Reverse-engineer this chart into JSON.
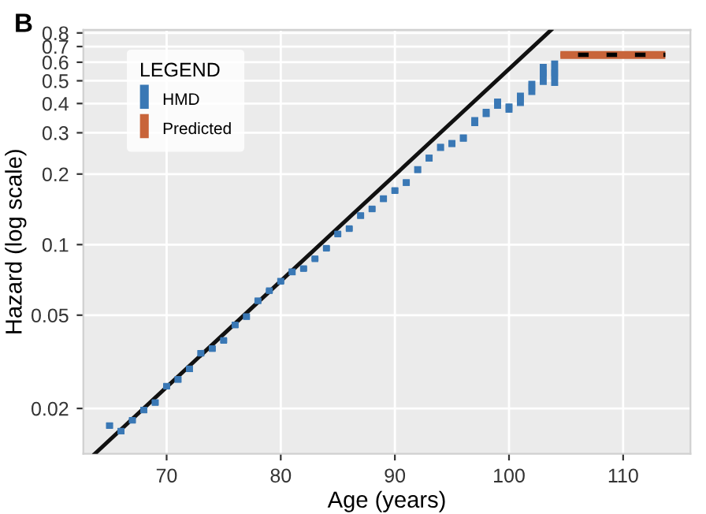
{
  "chart_data": {
    "type": "line",
    "title": "B",
    "xlabel": "Age (years)",
    "ylabel": "Hazard (log scale)",
    "legend_title": "LEGEND",
    "legend": "top left",
    "log": "y",
    "grid": true,
    "xlim": [
      62.7,
      115.9
    ],
    "ylim": [
      0.0128,
      0.825
    ],
    "xticks": [
      70,
      80,
      90,
      100,
      110
    ],
    "yticks": [
      0.02,
      0.05,
      0.1,
      0.2,
      0.3,
      0.4,
      0.5,
      0.6,
      0.7,
      0.8
    ],
    "series": [
      {
        "name": "HMD",
        "type": "scatter",
        "marker": "square",
        "color": "#3a78b5",
        "x": [
          65,
          66,
          67,
          68,
          69,
          70,
          71,
          72,
          73,
          74,
          75,
          76,
          77,
          78,
          79,
          80,
          81,
          82,
          83,
          84,
          85,
          86,
          87,
          88,
          89,
          90,
          91,
          92,
          93,
          94,
          95,
          96,
          97,
          98,
          99,
          100,
          101,
          102,
          103,
          104
        ],
        "values": [
          0.0169,
          0.016,
          0.0178,
          0.0197,
          0.0212,
          0.0249,
          0.0266,
          0.0295,
          0.0344,
          0.036,
          0.039,
          0.0454,
          0.0493,
          0.0576,
          0.0636,
          0.0697,
          0.0765,
          0.079,
          0.087,
          0.0965,
          0.111,
          0.117,
          0.133,
          0.142,
          0.157,
          0.17,
          0.184,
          0.209,
          0.234,
          0.26,
          0.27,
          0.285,
          0.333,
          0.363,
          0.4,
          0.383,
          0.42,
          0.47,
          0.54,
          0.54
        ],
        "errors": [
          [
            0.0164,
            0.0174
          ],
          [
            0.0155,
            0.0165
          ],
          [
            0.0173,
            0.0183
          ],
          [
            0.0191,
            0.0203
          ],
          [
            0.0206,
            0.0218
          ],
          [
            0.0242,
            0.0256
          ],
          [
            0.0258,
            0.0274
          ],
          [
            0.0286,
            0.0304
          ],
          [
            0.0334,
            0.0354
          ],
          [
            0.035,
            0.037
          ],
          [
            0.038,
            0.04
          ],
          [
            0.0441,
            0.0467
          ],
          [
            0.0479,
            0.0507
          ],
          [
            0.056,
            0.059
          ],
          [
            0.062,
            0.065
          ],
          [
            0.068,
            0.072
          ],
          [
            0.074,
            0.079
          ],
          [
            0.077,
            0.081
          ],
          [
            0.085,
            0.089
          ],
          [
            0.094,
            0.099
          ],
          [
            0.108,
            0.114
          ],
          [
            0.114,
            0.12
          ],
          [
            0.129,
            0.137
          ],
          [
            0.138,
            0.146
          ],
          [
            0.152,
            0.162
          ],
          [
            0.165,
            0.175
          ],
          [
            0.178,
            0.19
          ],
          [
            0.202,
            0.216
          ],
          [
            0.226,
            0.242
          ],
          [
            0.251,
            0.269
          ],
          [
            0.261,
            0.279
          ],
          [
            0.275,
            0.295
          ],
          [
            0.32,
            0.35
          ],
          [
            0.35,
            0.38
          ],
          [
            0.38,
            0.42
          ],
          [
            0.365,
            0.4
          ],
          [
            0.39,
            0.445
          ],
          [
            0.435,
            0.5
          ],
          [
            0.48,
            0.59
          ],
          [
            0.475,
            0.61
          ]
        ]
      },
      {
        "name": "Predicted",
        "color": "#c8643a",
        "line_style": "dashed",
        "x": [
          104.5,
          113.7
        ],
        "values": [
          0.645,
          0.645
        ],
        "lower": [
          0.62,
          0.62
        ],
        "upper": [
          0.67,
          0.67
        ]
      },
      {
        "color": "#111111",
        "line_style": "solid",
        "x": [
          63.7,
          103.7
        ],
        "values": [
          0.0128,
          0.825
        ]
      }
    ]
  }
}
